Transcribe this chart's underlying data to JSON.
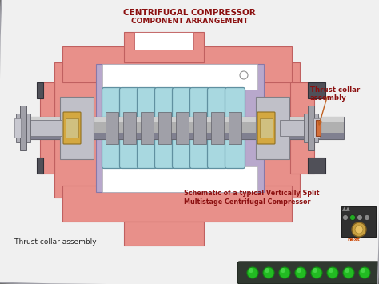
{
  "title_line1": "CENTRIFUGAL COMPRESSOR",
  "title_line2": "COMPONENT ARRANGEMENT",
  "title_color": "#8B1010",
  "bg_color_outer": "#a0a0a8",
  "bg_color_inner": "#f0f0f0",
  "label_thrust": "Thrust collar\nassembly",
  "label_bottom_left": "- Thrust collar assembly",
  "label_schematic_line1": "Schematic of a typical Vertically Split",
  "label_schematic_line2": "Multistage Centrifugal Compressor",
  "label_color": "#8B1010",
  "main_casing_color": "#E8908A",
  "main_casing_edge": "#c06060",
  "inner_purple_color": "#b8a8cc",
  "impeller_color": "#a8d8e0",
  "impeller_edge": "#6090a0",
  "shaft_light": "#d0d0d0",
  "shaft_mid": "#b0b0b0",
  "shaft_dark": "#808090",
  "bearing_color": "#D4A840",
  "bearing_edge": "#907020",
  "gray_block": "#909098",
  "gray_block_edge": "#606068",
  "dark_block": "#505058",
  "label_text_color": "#222222",
  "arrow_color": "#cc6010",
  "white": "#ffffff"
}
